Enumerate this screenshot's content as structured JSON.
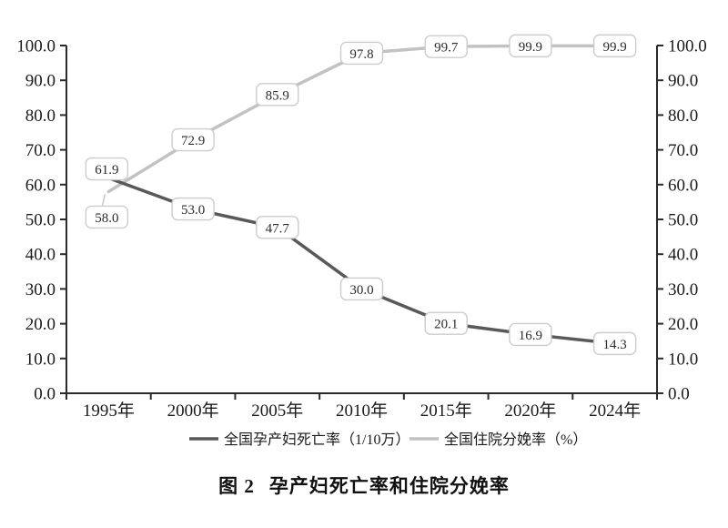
{
  "figure": {
    "caption_label": "图 2",
    "caption_title": "孕产妇死亡率和住院分娩率"
  },
  "chart_data": {
    "type": "line",
    "title": "图 2 孕产妇死亡率和住院分娩率",
    "categories": [
      "1995年",
      "2000年",
      "2005年",
      "2010年",
      "2015年",
      "2020年",
      "2024年"
    ],
    "series": [
      {
        "name": "全国孕产妇死亡率（1/10万）",
        "values": [
          61.9,
          53.0,
          47.7,
          30.0,
          20.1,
          16.9,
          14.3
        ],
        "labels": [
          "61.9",
          "53.0",
          "47.7",
          "30.0",
          "20.1",
          "16.9",
          "14.3"
        ],
        "color": "#595959"
      },
      {
        "name": "全国住院分娩率（%）",
        "values": [
          58.0,
          72.9,
          85.9,
          97.8,
          99.7,
          99.9,
          99.9
        ],
        "labels": [
          "58.0",
          "72.9",
          "85.9",
          "97.8",
          "99.7",
          "99.9",
          "99.9"
        ],
        "color": "#c2c2c2"
      }
    ],
    "y_axis": {
      "min": 0,
      "max": 100,
      "step": 10,
      "tick_labels": [
        "0.0",
        "10.0",
        "20.0",
        "30.0",
        "40.0",
        "50.0",
        "60.0",
        "70.0",
        "80.0",
        "90.0",
        "100.0"
      ],
      "sides": [
        "left",
        "right"
      ]
    },
    "x_axis": {
      "tick_position": "between"
    },
    "legend": {
      "position": "bottom"
    },
    "grid": "off",
    "colors": {
      "axis": "#2a2a2a",
      "tick_text": "#1a1a1a",
      "label_box_fill": "#ffffff",
      "label_box_border": "#cccccc",
      "label_text": "#2b2b2b"
    }
  }
}
